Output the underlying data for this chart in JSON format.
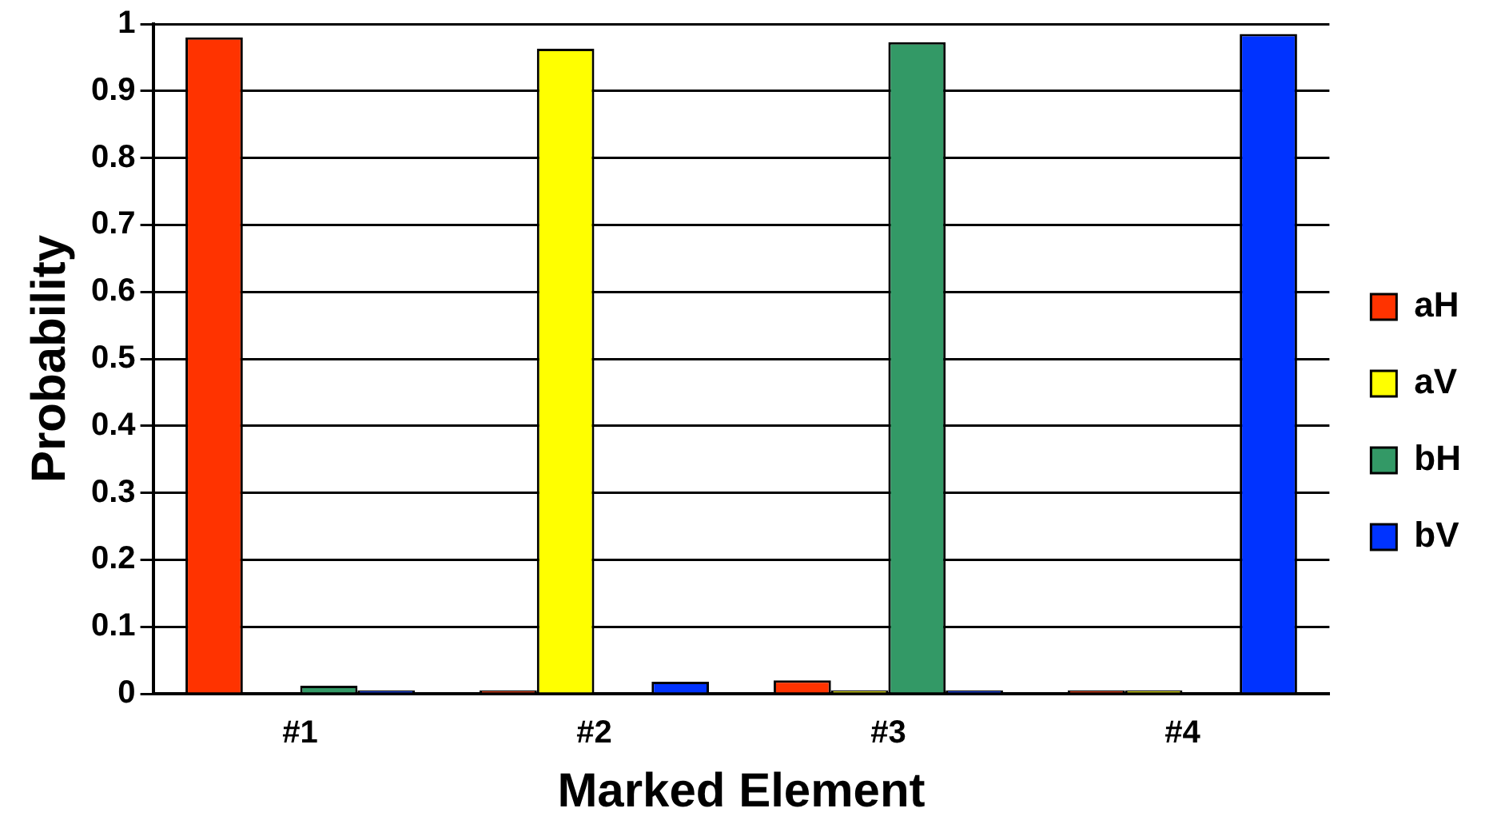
{
  "chart_data": {
    "type": "bar",
    "xlabel": "Marked Element",
    "ylabel": "Probability",
    "categories": [
      "#1",
      "#2",
      "#3",
      "#4"
    ],
    "series": [
      {
        "name": "aH",
        "color": "#ff3300",
        "values": [
          0.98,
          0.005,
          0.02,
          0.005
        ]
      },
      {
        "name": "aV",
        "color": "#ffff00",
        "values": [
          null,
          0.963,
          0.005,
          0.005
        ]
      },
      {
        "name": "bH",
        "color": "#339966",
        "values": [
          0.012,
          null,
          0.973,
          null
        ]
      },
      {
        "name": "bV",
        "color": "#0033ff",
        "values": [
          0.005,
          0.018,
          0.005,
          0.985
        ]
      }
    ],
    "ylim": [
      0,
      1
    ],
    "yticks": [
      0,
      0.1,
      0.2,
      0.3,
      0.4,
      0.5,
      0.6,
      0.7,
      0.8,
      0.9,
      1
    ],
    "grid": "y",
    "legend": "right"
  }
}
